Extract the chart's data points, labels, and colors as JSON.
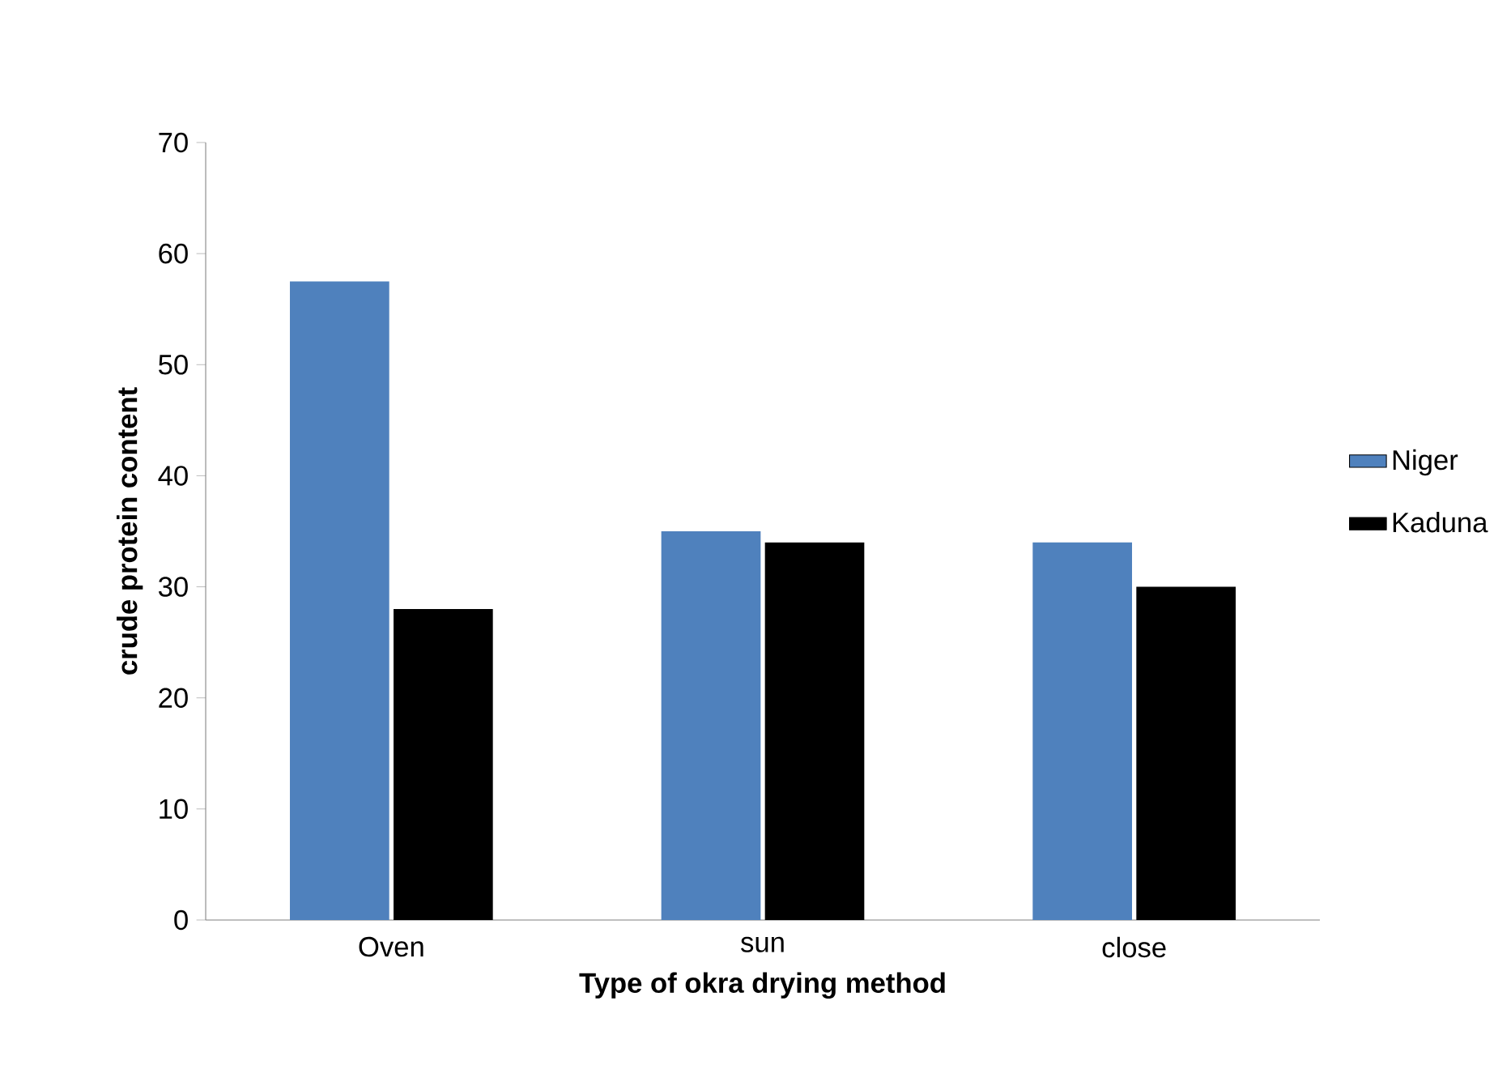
{
  "chart_data": {
    "type": "bar",
    "xlabel": "Type of okra drying method",
    "ylabel": "crude protein content",
    "categories": [
      "Oven",
      "sun",
      "close"
    ],
    "series": [
      {
        "name": "Niger",
        "color": "#4f81bd",
        "values": [
          57.5,
          35,
          34
        ]
      },
      {
        "name": "Kaduna",
        "color": "#000000",
        "values": [
          28,
          34,
          30
        ]
      }
    ],
    "ylim": [
      0,
      70
    ],
    "yticks": [
      0,
      10,
      20,
      30,
      40,
      50,
      60,
      70
    ],
    "grid": false,
    "legend": "right"
  }
}
